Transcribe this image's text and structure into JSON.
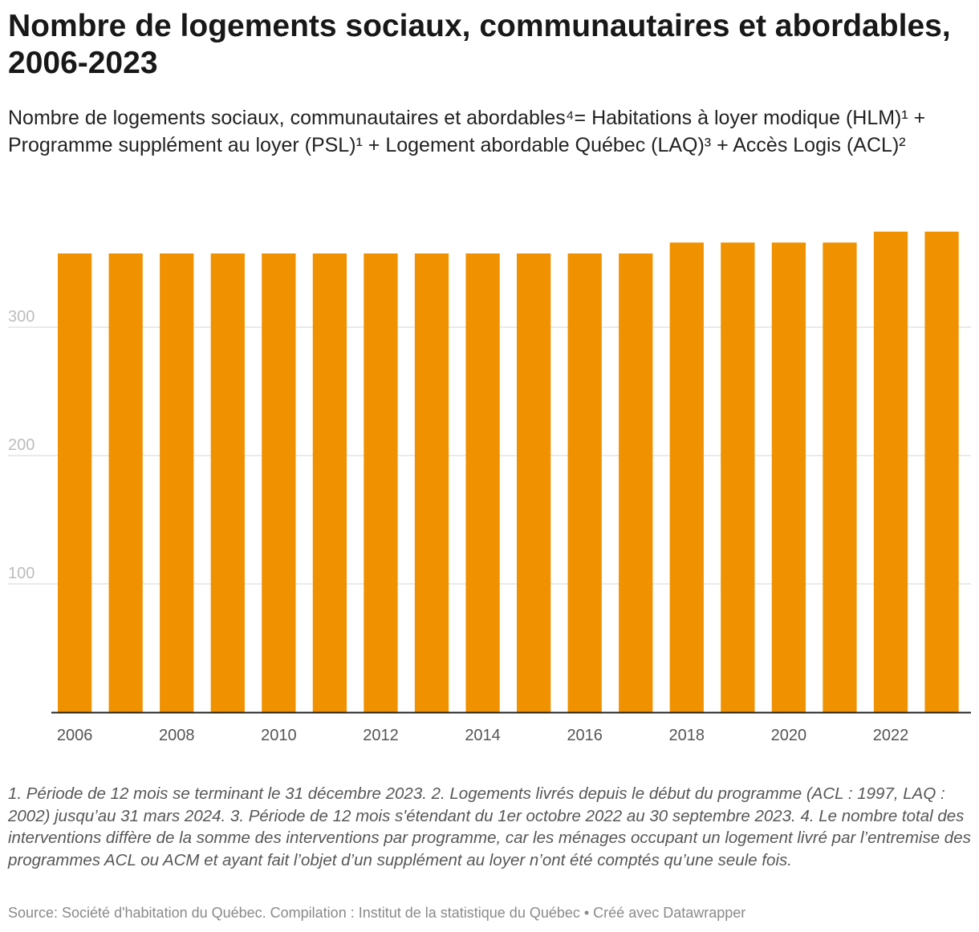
{
  "title": "Nombre de logements sociaux, communautaires et abordables, 2006-2023",
  "subtitle": "Nombre de logements sociaux, communautaires et abordables⁴= Habitations à loyer modique (HLM)¹ + Programme supplément au loyer (PSL)¹ + Logement abordable Québec (LAQ)³ + Accès Logis (ACL)²",
  "notes": "1. Période de 12 mois se terminant le 31 décembre 2023. 2. Logements livrés depuis le début du programme (ACL : 1997, LAQ : 2002) jusqu’au 31 mars 2024. 3. Période de 12 mois s'étendant du 1er octobre 2022 au 30 septembre 2023. 4. Le nombre total des interventions diffère de la somme des interventions par programme, car les ménages occupant un logement livré par l’entremise des programmes ACL ou ACM et ayant fait l’objet d’un supplément au loyer n’ont été comptés qu’une seule fois.",
  "source": "Source: Société d'habitation du Québec. Compilation : Institut de la statistique du Québec • Créé avec Datawrapper",
  "colors": {
    "bar": "#f09100",
    "grid": "#e4e4e4",
    "axis": "#222222",
    "tick_label": "#bdbdbd",
    "x_label": "#555555"
  },
  "chart_data": {
    "type": "bar",
    "categories": [
      "2006",
      "2007",
      "2008",
      "2009",
      "2010",
      "2011",
      "2012",
      "2013",
      "2014",
      "2015",
      "2016",
      "2017",
      "2018",
      "2019",
      "2020",
      "2021",
      "2022",
      "2023"
    ],
    "values": [
      357.5,
      357.5,
      357.5,
      357.5,
      357.5,
      357.5,
      357.5,
      357.5,
      357.5,
      357.5,
      357.5,
      357.5,
      366,
      366,
      366,
      366,
      374.5,
      374.5
    ],
    "x_tick_labels": [
      "2006",
      "2008",
      "2010",
      "2012",
      "2014",
      "2016",
      "2018",
      "2020",
      "2022"
    ],
    "y_ticks": [
      100,
      200,
      300
    ],
    "ylim": [
      0,
      390
    ],
    "grid": true,
    "legend": "none"
  }
}
